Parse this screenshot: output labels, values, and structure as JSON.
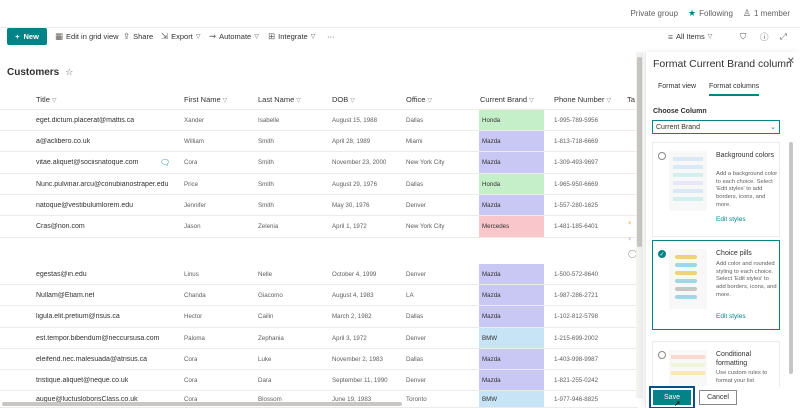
{
  "groupbar": {
    "private_group": "Private group",
    "following": "Following",
    "members": "1 member"
  },
  "commands": {
    "new": "New",
    "edit_grid": "Edit in grid view",
    "share": "Share",
    "export": "Export",
    "automate": "Automate",
    "integrate": "Integrate",
    "more": "···",
    "all_items": "All Items"
  },
  "list": {
    "title": "Customers"
  },
  "columns": [
    "Title",
    "First Name",
    "Last Name",
    "DOB",
    "Office",
    "Current Brand",
    "Phone Number",
    "Ta"
  ],
  "rows": [
    {
      "title": "eget.dictum.placerat@mattis.ca",
      "first": "Xander",
      "last": "Isabelle",
      "dob": "August 15, 1988",
      "office": "Dallas",
      "brand": "Honda",
      "phone": "1-995-789-5956"
    },
    {
      "title": "a@aclibero.co.uk",
      "first": "William",
      "last": "Smith",
      "dob": "April 28, 1989",
      "office": "Miami",
      "brand": "Mazda",
      "phone": "1-813-718-6669"
    },
    {
      "title": "vitae.aliquet@sociisnatoque.com",
      "first": "Cora",
      "last": "Smith",
      "dob": "November 23, 2000",
      "office": "New York City",
      "brand": "Mazda",
      "phone": "1-309-493-9697"
    },
    {
      "title": "Nunc.pulvinar.arcu@conubianostraper.edu",
      "first": "Price",
      "last": "Smith",
      "dob": "August 29, 1976",
      "office": "Dallas",
      "brand": "Honda",
      "phone": "1-965-950-6669"
    },
    {
      "title": "natoque@vestibulumlorem.edu",
      "first": "Jennifer",
      "last": "Smith",
      "dob": "May 30, 1976",
      "office": "Denver",
      "brand": "Mazda",
      "phone": "1-557-280-1625"
    },
    {
      "title": "Cras@non.com",
      "first": "Jason",
      "last": "Zelenia",
      "dob": "April 1, 1972",
      "office": "New York City",
      "brand": "Mercedes",
      "phone": "1-481-185-6401"
    },
    {
      "title": "egestas@in.edu",
      "first": "Linus",
      "last": "Nelle",
      "dob": "October 4, 1999",
      "office": "Denver",
      "brand": "Mazda",
      "phone": "1-500-572-8640"
    },
    {
      "title": "Nullam@Etiam.net",
      "first": "Chanda",
      "last": "Giacomo",
      "dob": "August 4, 1983",
      "office": "LA",
      "brand": "Mazda",
      "phone": "1-987-286-2721"
    },
    {
      "title": "ligula.elit.pretium@risus.ca",
      "first": "Hector",
      "last": "Cailin",
      "dob": "March 2, 1982",
      "office": "Dallas",
      "brand": "Mazda",
      "phone": "1-102-812-5798"
    },
    {
      "title": "est.tempor.bibendum@neccursusa.com",
      "first": "Paloma",
      "last": "Zephania",
      "dob": "April 3, 1972",
      "office": "Denver",
      "brand": "BMW",
      "phone": "1-215-699-2002"
    },
    {
      "title": "eleifend.nec.malesuada@atrisus.ca",
      "first": "Cora",
      "last": "Luke",
      "dob": "November 2, 1983",
      "office": "Dallas",
      "brand": "Mazda",
      "phone": "1-403-998-9987"
    },
    {
      "title": "tristique.aliquet@neque.co.uk",
      "first": "Cora",
      "last": "Dara",
      "dob": "September 11, 1990",
      "office": "Denver",
      "brand": "Mazda",
      "phone": "1-821-255-0242"
    },
    {
      "title": "augue@luctusloborisClass.co.uk",
      "first": "Cora",
      "last": "Blossom",
      "dob": "June 19, 1983",
      "office": "Toronto",
      "brand": "BMW",
      "phone": "1-977-946-8825"
    }
  ],
  "brand_colors": {
    "Honda": "#c5efc9",
    "Mazda": "#c9c8f4",
    "Mercedes": "#f9c7cb",
    "BMW": "#c7e3f6"
  },
  "panel": {
    "title": "Format Current Brand column",
    "tabs": [
      "Format view",
      "Format columns"
    ],
    "choose_label": "Choose Column",
    "selected_column": "Current Brand",
    "cards": [
      {
        "title": "Background colors",
        "desc": "Add a background color to each choice. Select 'Edit styles' to add borders, icons, and more.",
        "link": "Edit styles"
      },
      {
        "title": "Choice pills",
        "desc": "Add color and rounded styling to each choice. Select 'Edit styles' to add borders, icons, and more.",
        "link": "Edit styles"
      },
      {
        "title": "Conditional formatting",
        "desc": "Use custom rules to format your list",
        "link": ""
      }
    ],
    "save": "Save",
    "cancel": "Cancel"
  },
  "accent": "#038387"
}
